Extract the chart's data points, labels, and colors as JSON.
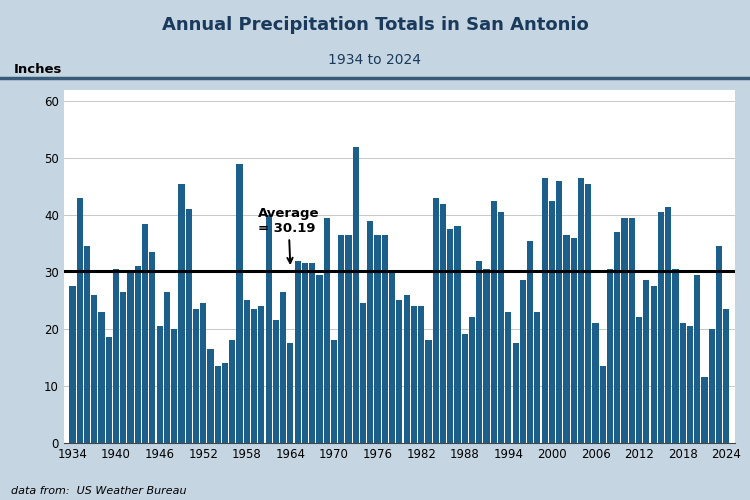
{
  "title": "Annual Precipitation Totals in San Antonio",
  "subtitle": "1934 to 2024",
  "ylabel": "Inches",
  "average": 30.19,
  "average_label": "Average\n= 30.19",
  "bar_color": "#1c5f8a",
  "avg_line_color": "#000000",
  "title_bg_color": "#b4c8d8",
  "title_color": "#1a3a5c",
  "subtitle_color": "#1a3a5c",
  "footer": "data from:  US Weather Bureau",
  "ylim": [
    0,
    62
  ],
  "yticks": [
    0,
    10,
    20,
    30,
    40,
    50,
    60
  ],
  "fig_bg_color": "#c5d5e2",
  "plot_bg_color": "#ffffff",
  "years": [
    1934,
    1935,
    1936,
    1937,
    1938,
    1939,
    1940,
    1941,
    1942,
    1943,
    1944,
    1945,
    1946,
    1947,
    1948,
    1949,
    1950,
    1951,
    1952,
    1953,
    1954,
    1955,
    1956,
    1957,
    1958,
    1959,
    1960,
    1961,
    1962,
    1963,
    1964,
    1965,
    1966,
    1967,
    1968,
    1969,
    1970,
    1971,
    1972,
    1973,
    1974,
    1975,
    1976,
    1977,
    1978,
    1979,
    1980,
    1981,
    1982,
    1983,
    1984,
    1985,
    1986,
    1987,
    1988,
    1989,
    1990,
    1991,
    1992,
    1993,
    1994,
    1995,
    1996,
    1997,
    1998,
    1999,
    2000,
    2001,
    2002,
    2003,
    2004,
    2005,
    2006,
    2007,
    2008,
    2009,
    2010,
    2011,
    2012,
    2013,
    2014,
    2015,
    2016,
    2017,
    2018,
    2019,
    2020,
    2021,
    2022,
    2023,
    2024
  ],
  "values": [
    27.5,
    43.0,
    34.5,
    26.0,
    23.0,
    18.5,
    30.5,
    26.5,
    30.0,
    31.0,
    38.5,
    33.5,
    20.5,
    26.5,
    20.0,
    45.5,
    41.0,
    23.5,
    24.5,
    16.5,
    13.5,
    14.0,
    18.0,
    49.0,
    25.0,
    23.5,
    24.0,
    40.0,
    21.5,
    26.5,
    17.5,
    32.0,
    31.5,
    31.5,
    29.5,
    39.5,
    18.0,
    36.5,
    36.5,
    52.0,
    24.5,
    39.0,
    36.5,
    36.5,
    30.0,
    25.0,
    26.0,
    24.0,
    24.0,
    18.0,
    43.0,
    42.0,
    37.5,
    38.0,
    19.0,
    22.0,
    32.0,
    30.5,
    42.5,
    40.5,
    23.0,
    17.5,
    28.5,
    35.5,
    23.0,
    46.5,
    42.5,
    46.0,
    36.5,
    36.0,
    46.5,
    45.5,
    21.0,
    13.5,
    30.5,
    37.0,
    39.5,
    39.5,
    22.0,
    28.5,
    27.5,
    40.5,
    41.5,
    30.5,
    21.0,
    20.5,
    29.5,
    11.5,
    20.0,
    34.5,
    23.5
  ]
}
